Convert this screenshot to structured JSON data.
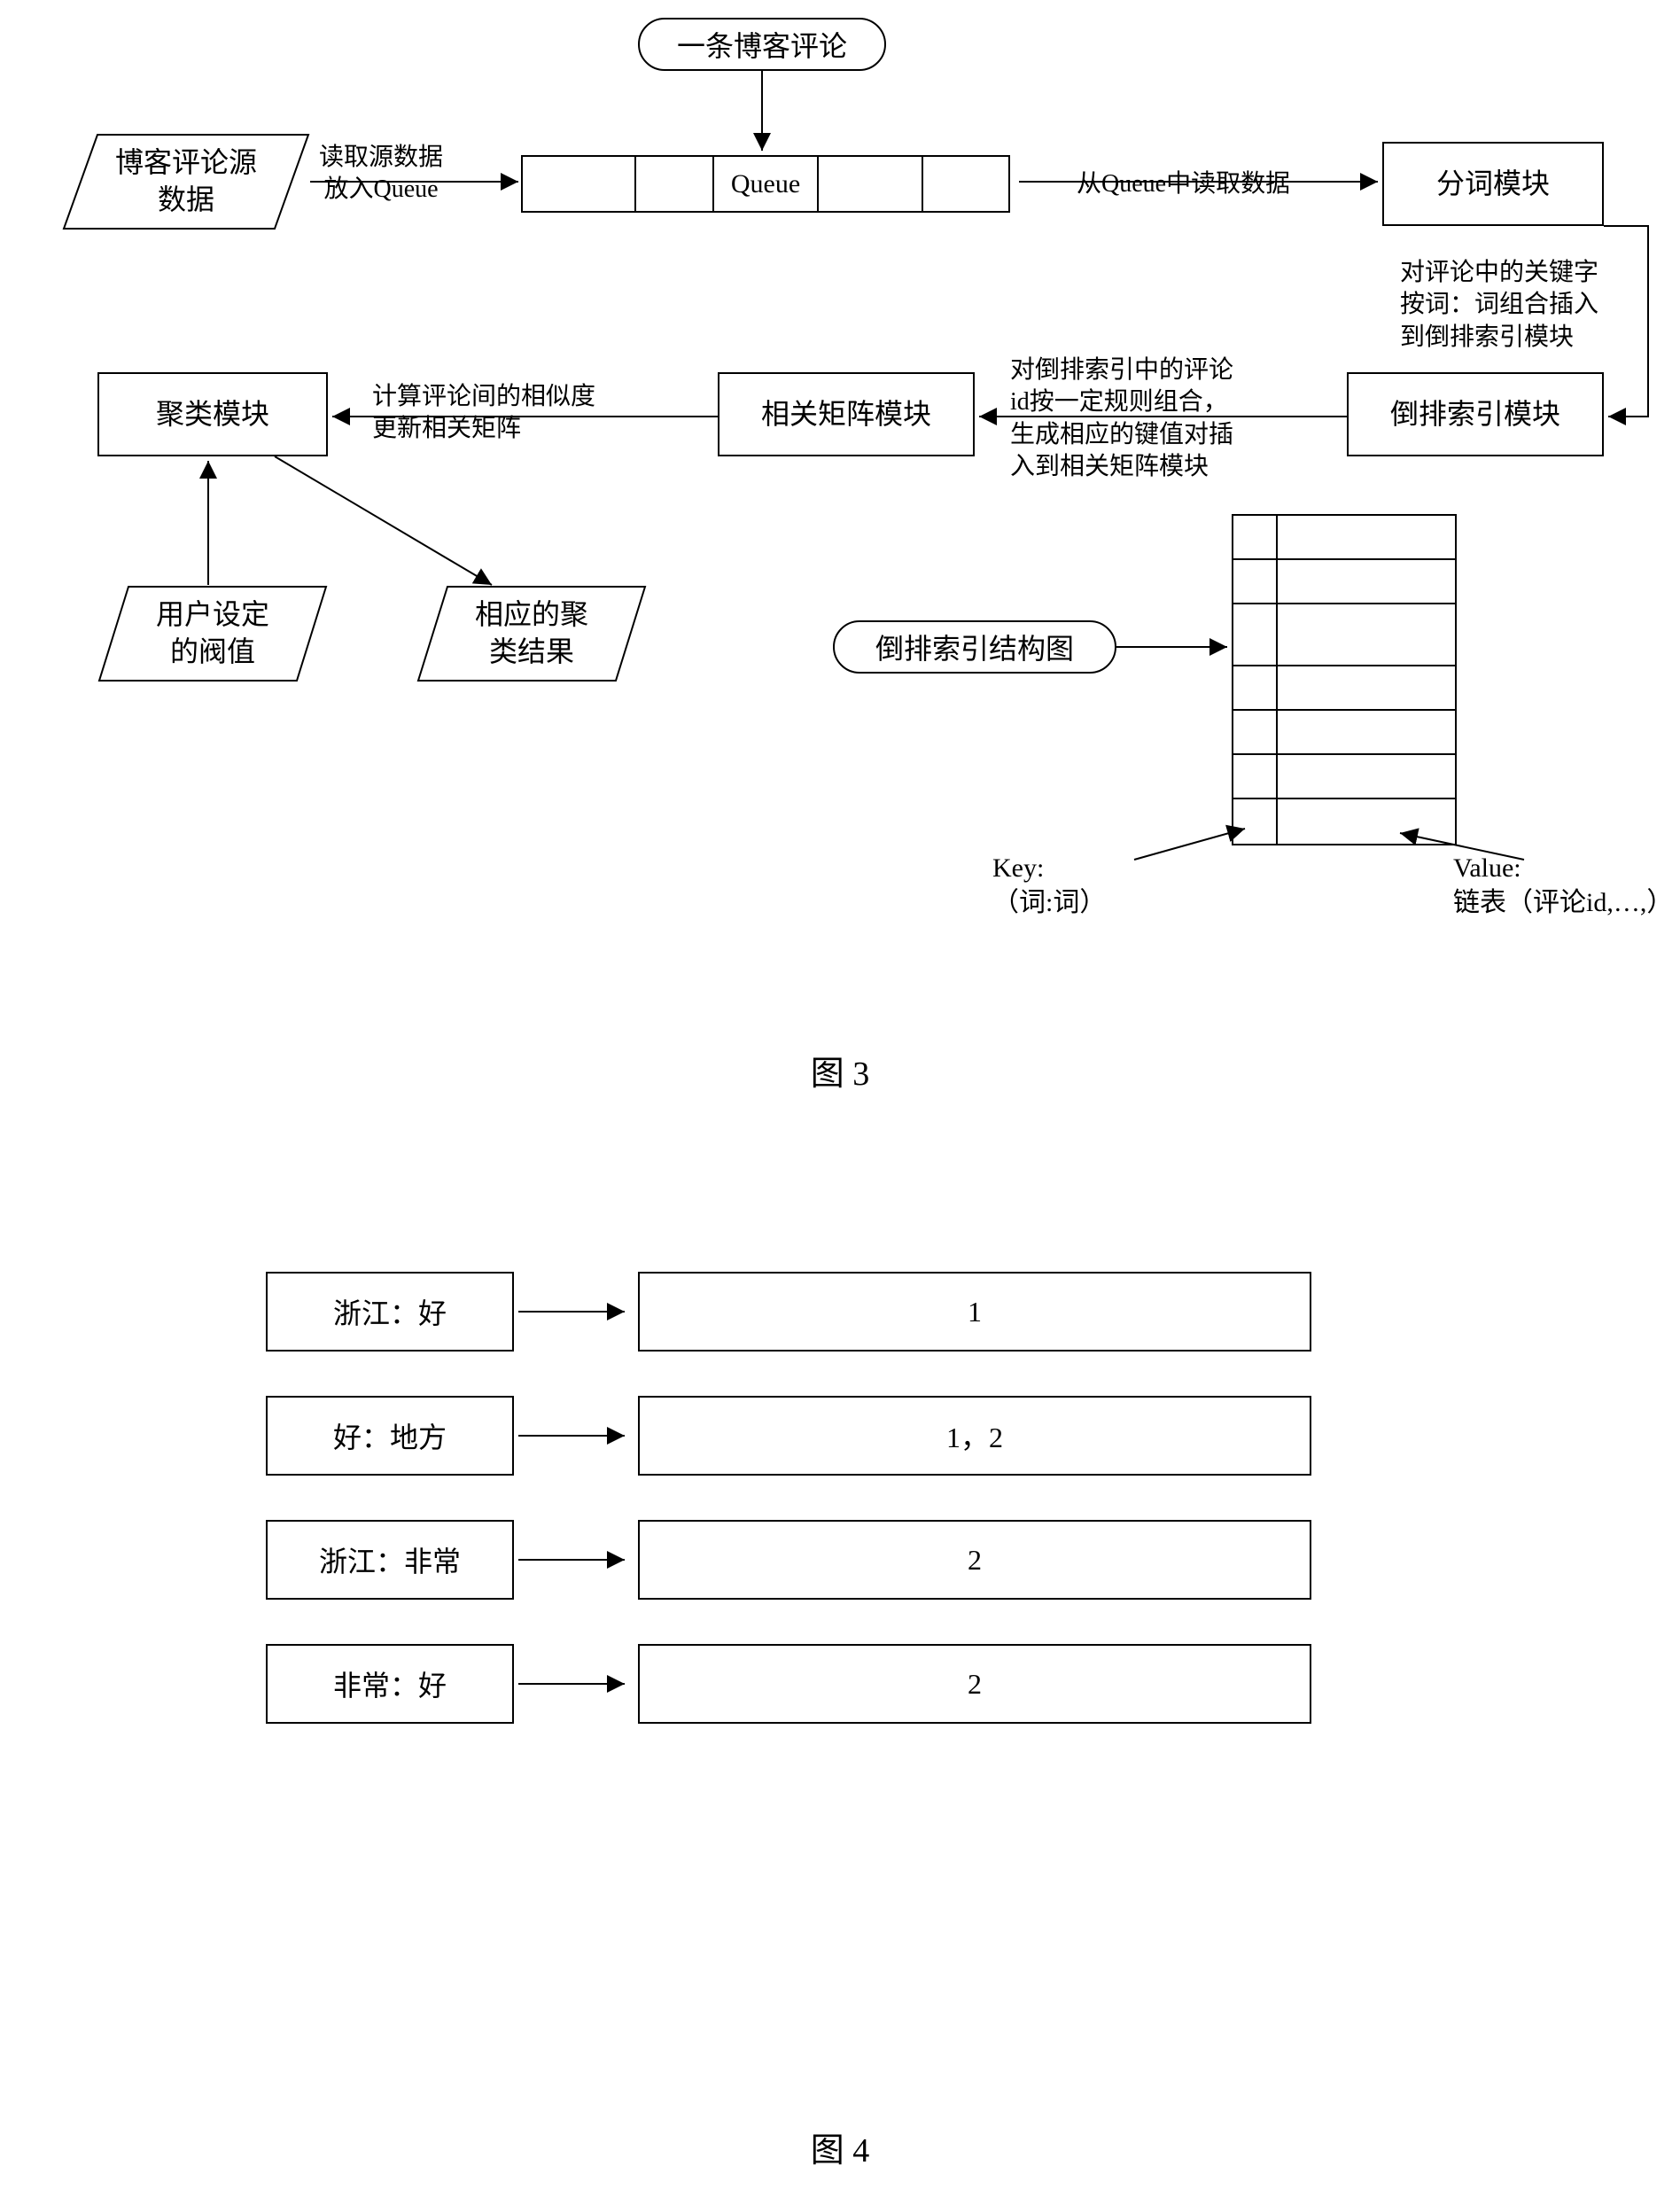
{
  "fig3": {
    "oval_comment": "一条博客评论",
    "parallelogram_source": "博客评论源\n数据",
    "label_read_queue": "读取源数据\n放入Queue",
    "queue_label": "Queue",
    "label_from_queue": "从Queue中读取数据",
    "box_segment": "分词模块",
    "label_seg_to_index": "对评论中的关键字\n按词：词组合插入\n到倒排索引模块",
    "box_index": "倒排索引模块",
    "label_index_to_matrix": "对倒排索引中的评论\nid按一定规则组合，\n生成相应的键值对插\n入到相关矩阵模块",
    "box_matrix": "相关矩阵模块",
    "label_matrix_to_cluster": "计算评论间的相似度\n更新相关矩阵",
    "box_cluster": "聚类模块",
    "parallelogram_threshold": "用户设定\n的阀值",
    "parallelogram_result": "相应的聚\n类结果",
    "oval_index_structure": "倒排索引结构图",
    "key_label": "Key:\n（词:词）",
    "value_label": "Value:\n链表（评论id,…,）",
    "caption": "图 3"
  },
  "fig4": {
    "rows": [
      {
        "key": "浙江：好",
        "value": "1"
      },
      {
        "key": "好：地方",
        "value": "1，2"
      },
      {
        "key": "浙江：非常",
        "value": "2"
      },
      {
        "key": "非常：好",
        "value": "2"
      }
    ],
    "caption": "图 4"
  },
  "style": {
    "border_color": "#000000",
    "font_size_box": 32,
    "font_size_label": 28
  }
}
